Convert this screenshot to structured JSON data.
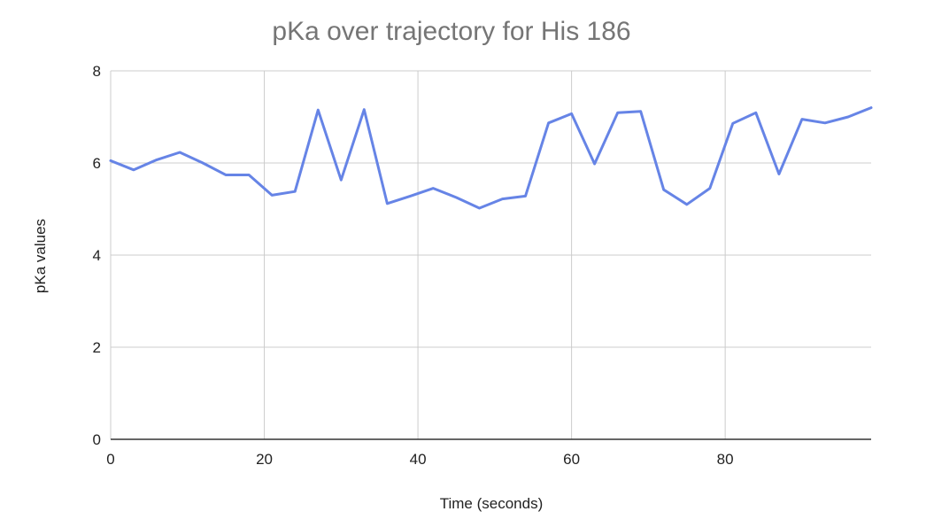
{
  "chart_data": {
    "type": "line",
    "title": "pKa over trajectory for His 186",
    "xlabel": "Time (seconds)",
    "ylabel": "pKa values",
    "xlim": [
      0,
      99
    ],
    "ylim": [
      0,
      8
    ],
    "xticks": [
      0,
      20,
      40,
      60,
      80
    ],
    "yticks": [
      0,
      2,
      4,
      6,
      8
    ],
    "grid": true,
    "legend": "none",
    "series": [
      {
        "color": "#6684e6",
        "x": [
          0,
          3,
          6,
          9,
          12,
          15,
          18,
          21,
          24,
          27,
          30,
          33,
          36,
          39,
          42,
          45,
          48,
          51,
          54,
          57,
          60,
          63,
          66,
          69,
          72,
          75,
          78,
          81,
          84,
          87,
          90,
          93,
          96,
          99
        ],
        "y": [
          6.05,
          5.85,
          6.07,
          6.23,
          6.0,
          5.74,
          5.74,
          5.3,
          5.38,
          7.15,
          5.63,
          7.16,
          5.12,
          5.28,
          5.45,
          5.25,
          5.02,
          5.22,
          5.28,
          6.87,
          7.07,
          5.98,
          7.09,
          7.12,
          5.42,
          5.1,
          5.45,
          6.86,
          7.09,
          5.76,
          6.95,
          6.87,
          7.0,
          7.2
        ]
      }
    ]
  }
}
